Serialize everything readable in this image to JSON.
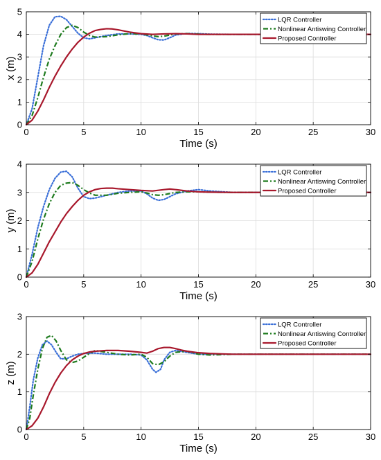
{
  "figure": {
    "legend_entries": [
      "LQR Controller",
      "Nonlinear Antiswing Controller",
      "Proposed Controller"
    ]
  },
  "colors": {
    "lqr": "#3a6fd8",
    "nonlinear": "#1d7a1d",
    "proposed": "#a8182c",
    "grid": "#dcdcdc"
  },
  "chart_data": [
    {
      "type": "line",
      "title": "",
      "xlabel": "Time (s)",
      "ylabel": "x (m)",
      "xlim": [
        0,
        30
      ],
      "ylim": [
        0,
        5
      ],
      "xticks": [
        0,
        5,
        10,
        15,
        20,
        25,
        30
      ],
      "yticks": [
        0,
        1,
        2,
        3,
        4,
        5
      ],
      "grid": true,
      "legend_placement": "top-right",
      "series": [
        {
          "name": "LQR Controller",
          "style": "dotted",
          "color_key": "lqr",
          "x": [
            0,
            0.5,
            1,
            1.5,
            2,
            2.5,
            3,
            3.5,
            4,
            4.5,
            5,
            5.5,
            6,
            7,
            8,
            9,
            10,
            10.5,
            11,
            11.5,
            12,
            12.5,
            13,
            14,
            15,
            16,
            18,
            20,
            25,
            30
          ],
          "y": [
            0,
            0.7,
            2.1,
            3.5,
            4.4,
            4.78,
            4.8,
            4.65,
            4.35,
            4.05,
            3.85,
            3.8,
            3.85,
            3.95,
            4.02,
            4.02,
            4.0,
            3.95,
            3.85,
            3.76,
            3.75,
            3.85,
            3.97,
            4.04,
            4.03,
            4.01,
            4.0,
            4.0,
            4.0,
            4.0
          ]
        },
        {
          "name": "Nonlinear Antiswing Controller",
          "style": "dashdot",
          "color_key": "nonlinear",
          "x": [
            0,
            0.5,
            1,
            1.5,
            2,
            2.5,
            3,
            3.5,
            4,
            4.5,
            5,
            5.5,
            6,
            7,
            8,
            9,
            10,
            10.5,
            11,
            11.5,
            12,
            12.5,
            13,
            14,
            15,
            16,
            18,
            20,
            25,
            30
          ],
          "y": [
            0,
            0.4,
            1.2,
            2.1,
            2.9,
            3.5,
            4.0,
            4.3,
            4.4,
            4.3,
            4.1,
            3.95,
            3.88,
            3.9,
            3.98,
            4.03,
            4.02,
            3.98,
            3.93,
            3.9,
            3.92,
            3.97,
            4.02,
            4.03,
            4.01,
            4.0,
            4.0,
            4.0,
            4.0,
            4.0
          ]
        },
        {
          "name": "Proposed Controller",
          "style": "solid",
          "color_key": "proposed",
          "x": [
            0,
            0.5,
            1,
            1.5,
            2,
            2.5,
            3,
            3.5,
            4,
            4.5,
            5,
            5.5,
            6,
            6.5,
            7,
            7.5,
            8,
            9,
            10,
            11,
            12,
            13,
            14,
            15,
            16,
            18,
            20,
            25,
            30
          ],
          "y": [
            0,
            0.2,
            0.6,
            1.1,
            1.65,
            2.15,
            2.6,
            3.0,
            3.35,
            3.65,
            3.88,
            4.05,
            4.17,
            4.22,
            4.25,
            4.24,
            4.2,
            4.1,
            4.03,
            4.0,
            4.02,
            4.03,
            4.02,
            4.0,
            4.0,
            4.0,
            4.0,
            4.0,
            4.0
          ]
        }
      ]
    },
    {
      "type": "line",
      "title": "",
      "xlabel": "Time (s)",
      "ylabel": "y (m)",
      "xlim": [
        0,
        30
      ],
      "ylim": [
        0,
        4
      ],
      "xticks": [
        0,
        5,
        10,
        15,
        20,
        25,
        30
      ],
      "yticks": [
        0,
        1,
        2,
        3,
        4
      ],
      "grid": true,
      "legend_placement": "top-right",
      "series": [
        {
          "name": "LQR Controller",
          "style": "dotted",
          "color_key": "lqr",
          "x": [
            0,
            0.5,
            1,
            1.5,
            2,
            2.5,
            3,
            3.5,
            4,
            4.5,
            5,
            5.5,
            6,
            7,
            8,
            9,
            10,
            10.5,
            11,
            11.5,
            12,
            12.5,
            13,
            14,
            15,
            16,
            18,
            20,
            25,
            30
          ],
          "y": [
            0,
            0.8,
            1.75,
            2.5,
            3.1,
            3.5,
            3.72,
            3.75,
            3.55,
            3.15,
            2.85,
            2.78,
            2.8,
            2.9,
            3.0,
            3.05,
            3.05,
            2.95,
            2.8,
            2.72,
            2.75,
            2.85,
            2.95,
            3.05,
            3.1,
            3.05,
            3.0,
            3.0,
            3.0,
            3.0
          ]
        },
        {
          "name": "Nonlinear Antiswing Controller",
          "style": "dashdot",
          "color_key": "nonlinear",
          "x": [
            0,
            0.5,
            1,
            1.5,
            2,
            2.5,
            3,
            3.5,
            4,
            4.5,
            5,
            5.5,
            6,
            7,
            8,
            9,
            10,
            10.5,
            11,
            11.5,
            12,
            12.5,
            13,
            14,
            15,
            16,
            18,
            20,
            25,
            30
          ],
          "y": [
            0,
            0.55,
            1.35,
            2.05,
            2.6,
            3.0,
            3.25,
            3.33,
            3.35,
            3.25,
            3.1,
            2.98,
            2.9,
            2.9,
            2.97,
            3.0,
            3.02,
            2.98,
            2.92,
            2.9,
            2.92,
            2.96,
            3.0,
            3.02,
            3.02,
            3.01,
            3.0,
            3.0,
            3.0,
            3.0
          ]
        },
        {
          "name": "Proposed Controller",
          "style": "solid",
          "color_key": "proposed",
          "x": [
            0,
            0.5,
            1,
            1.5,
            2,
            2.5,
            3,
            3.5,
            4,
            4.5,
            5,
            5.5,
            6,
            6.5,
            7,
            7.5,
            8,
            9,
            10,
            11,
            12,
            12.5,
            13,
            14,
            15,
            16,
            18,
            20,
            25,
            30
          ],
          "y": [
            0,
            0.15,
            0.45,
            0.85,
            1.25,
            1.6,
            1.95,
            2.25,
            2.5,
            2.72,
            2.9,
            3.02,
            3.1,
            3.14,
            3.15,
            3.15,
            3.13,
            3.1,
            3.07,
            3.05,
            3.1,
            3.12,
            3.1,
            3.05,
            3.02,
            3.01,
            3.0,
            3.0,
            3.0,
            3.0
          ]
        }
      ]
    },
    {
      "type": "line",
      "title": "",
      "xlabel": "Time (s)",
      "ylabel": "z (m)",
      "xlim": [
        0,
        30
      ],
      "ylim": [
        0,
        3
      ],
      "xticks": [
        0,
        5,
        10,
        15,
        20,
        25,
        30
      ],
      "yticks": [
        0,
        1,
        2,
        3
      ],
      "grid": true,
      "legend_placement": "top-right",
      "series": [
        {
          "name": "LQR Controller",
          "style": "dotted",
          "color_key": "lqr",
          "x": [
            0,
            0.3,
            0.6,
            1,
            1.4,
            1.8,
            2.2,
            2.6,
            3,
            3.5,
            4,
            4.5,
            5,
            6,
            7,
            8,
            9,
            10,
            10.5,
            11,
            11.3,
            11.7,
            12,
            12.5,
            13,
            14,
            15,
            16,
            18,
            20,
            25,
            30
          ],
          "y": [
            0,
            0.6,
            1.3,
            1.9,
            2.25,
            2.35,
            2.25,
            2.05,
            1.88,
            1.88,
            1.95,
            2.0,
            2.02,
            2.03,
            2.0,
            2.0,
            2.0,
            1.98,
            1.85,
            1.6,
            1.52,
            1.6,
            1.85,
            2.05,
            2.1,
            2.05,
            2.0,
            2.0,
            2.0,
            2.0,
            2.0,
            2.0
          ]
        },
        {
          "name": "Nonlinear Antiswing Controller",
          "style": "dashdot",
          "color_key": "nonlinear",
          "x": [
            0,
            0.3,
            0.6,
            1,
            1.4,
            1.8,
            2.2,
            2.6,
            3,
            3.5,
            4,
            4.5,
            5,
            5.5,
            6,
            7,
            8,
            9,
            10,
            10.5,
            11,
            11.5,
            12,
            12.5,
            13,
            14,
            15,
            16,
            18,
            20,
            25,
            30
          ],
          "y": [
            0,
            0.3,
            0.9,
            1.6,
            2.15,
            2.45,
            2.5,
            2.35,
            2.1,
            1.85,
            1.78,
            1.82,
            1.92,
            2.02,
            2.1,
            2.05,
            2.0,
            1.98,
            2.0,
            1.92,
            1.75,
            1.72,
            1.8,
            1.95,
            2.05,
            2.08,
            2.0,
            1.98,
            2.0,
            2.0,
            2.0,
            2.0
          ]
        },
        {
          "name": "Proposed Controller",
          "style": "solid",
          "color_key": "proposed",
          "x": [
            0,
            0.5,
            1,
            1.5,
            2,
            2.5,
            3,
            3.5,
            4,
            4.5,
            5,
            5.5,
            6,
            6.5,
            7,
            8,
            9,
            10,
            10.5,
            11,
            11.5,
            12,
            12.5,
            13,
            13.5,
            14,
            15,
            16,
            17,
            18,
            20,
            25,
            30
          ],
          "y": [
            0,
            0.1,
            0.3,
            0.6,
            0.95,
            1.25,
            1.5,
            1.7,
            1.85,
            1.95,
            2.02,
            2.06,
            2.08,
            2.09,
            2.1,
            2.1,
            2.08,
            2.05,
            2.03,
            2.08,
            2.15,
            2.18,
            2.18,
            2.15,
            2.11,
            2.08,
            2.04,
            2.02,
            2.01,
            2.0,
            2.0,
            2.0,
            2.0
          ]
        }
      ]
    }
  ]
}
